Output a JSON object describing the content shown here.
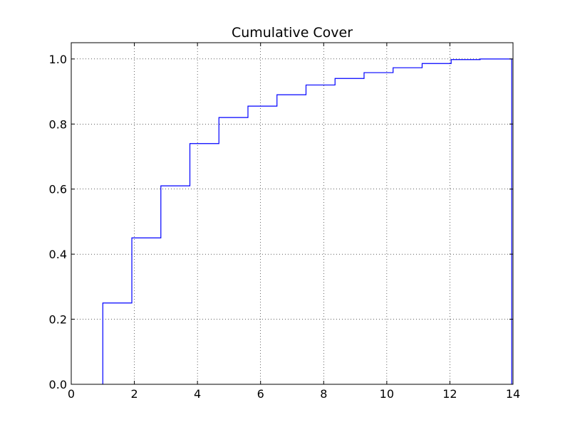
{
  "chart_data": {
    "type": "line",
    "title": "Cumulative Cover",
    "xlabel": "",
    "ylabel": "",
    "xlim": [
      0,
      14
    ],
    "ylim": [
      0,
      1.05
    ],
    "x_ticks": [
      0,
      2,
      4,
      6,
      8,
      10,
      12,
      14
    ],
    "x_tick_labels": [
      "0",
      "2",
      "4",
      "6",
      "8",
      "10",
      "12",
      "14"
    ],
    "y_ticks": [
      0.0,
      0.2,
      0.4,
      0.6,
      0.8,
      1.0
    ],
    "y_tick_labels": [
      "0.0",
      "0.2",
      "0.4",
      "0.6",
      "0.8",
      "1.0"
    ],
    "grid": true,
    "grid_style": "dotted",
    "legend": "none",
    "step": "post",
    "series": [
      {
        "color": "#0000ff",
        "x": [
          1.0,
          1.92,
          2.84,
          3.76,
          4.68,
          5.6,
          6.52,
          7.44,
          8.36,
          9.28,
          10.2,
          11.12,
          12.04,
          12.96,
          13.96
        ],
        "y": [
          0.25,
          0.45,
          0.61,
          0.74,
          0.82,
          0.855,
          0.89,
          0.92,
          0.94,
          0.958,
          0.973,
          0.986,
          0.998,
          1.0,
          1.0
        ]
      }
    ]
  }
}
